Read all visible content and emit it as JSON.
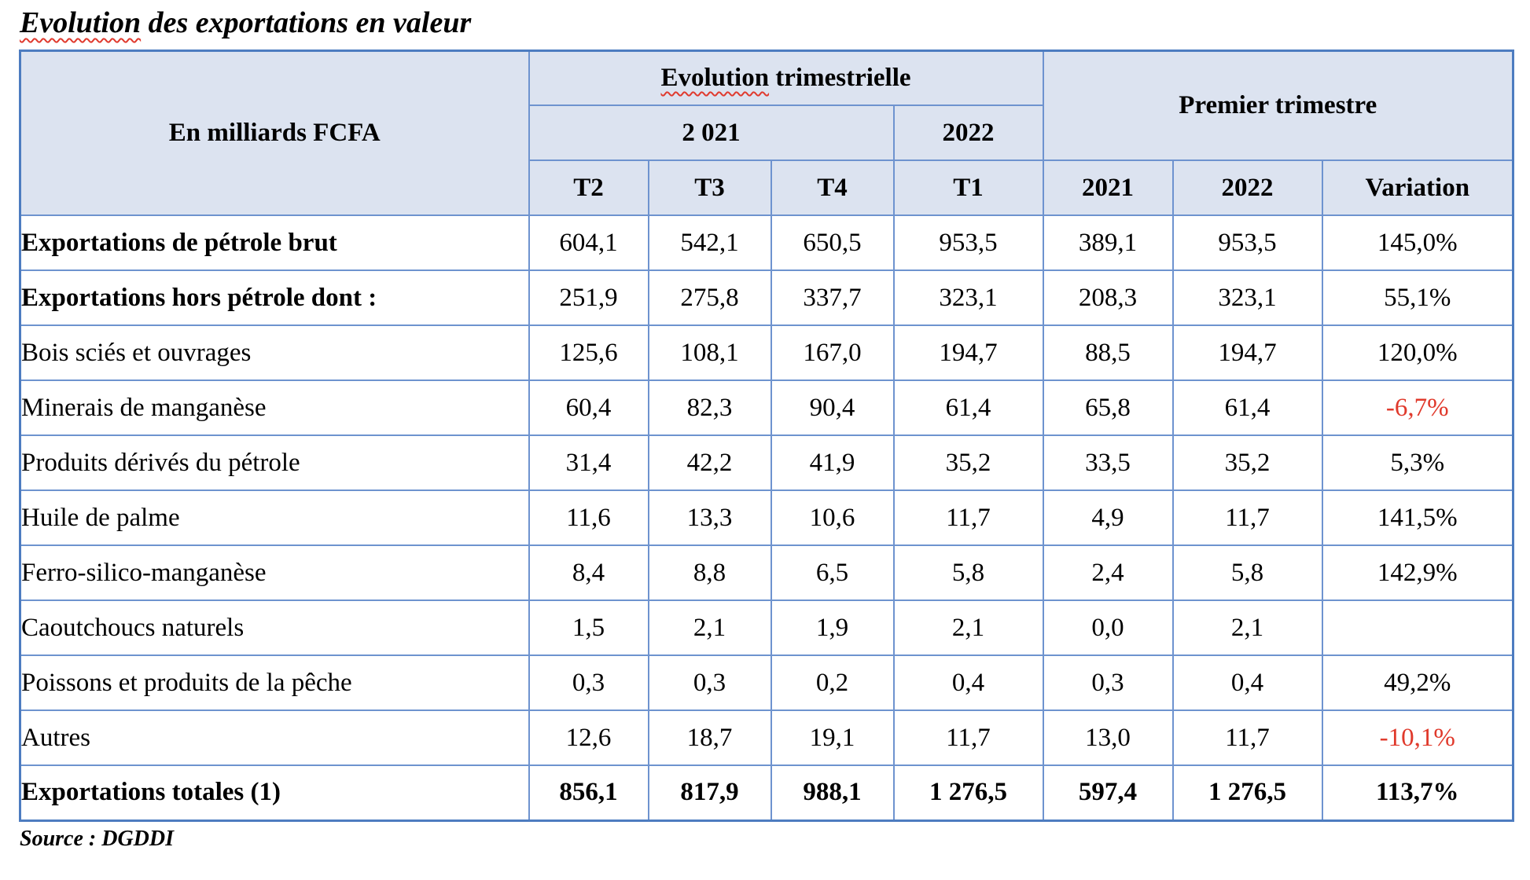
{
  "title": {
    "underlined_word": "Evolution",
    "rest": " des exportations en valeur"
  },
  "source_note": "Source : DGDDI",
  "colors": {
    "table_border_inner": "#6e93cf",
    "table_border_outer": "#4d7cc0",
    "header_fill": "#dce3f0",
    "negative_value": "#e0392b",
    "spellcheck_squiggle": "#e03a2e"
  },
  "table": {
    "corner_header": "En milliards FCFA",
    "evolution_group": {
      "underlined_word": "Evolution",
      "label_rest": " trimestrielle",
      "year_left": "2 021",
      "year_right": "2022",
      "quarter_headers": [
        "T2",
        "T3",
        "T4",
        "T1"
      ]
    },
    "premier_group": {
      "label": "Premier trimestre",
      "col_headers": [
        "2021",
        "2022",
        "Variation"
      ]
    },
    "rows": [
      {
        "label": "Exportations de pétrole brut",
        "label_bold": true,
        "values_bold": false,
        "values": [
          "604,1",
          "542,1",
          "650,5",
          "953,5",
          "389,1",
          "953,5",
          "145,0%"
        ]
      },
      {
        "label": "Exportations hors pétrole dont :",
        "label_bold": true,
        "values_bold": false,
        "values": [
          "251,9",
          "275,8",
          "337,7",
          "323,1",
          "208,3",
          "323,1",
          "55,1%"
        ]
      },
      {
        "label": "Bois sciés et ouvrages",
        "label_bold": false,
        "values_bold": false,
        "values": [
          "125,6",
          "108,1",
          "167,0",
          "194,7",
          "88,5",
          "194,7",
          "120,0%"
        ]
      },
      {
        "label": "Minerais de manganèse",
        "label_bold": false,
        "values_bold": false,
        "values": [
          "60,4",
          "82,3",
          "90,4",
          "61,4",
          "65,8",
          "61,4",
          "-6,7%"
        ]
      },
      {
        "label": "Produits dérivés du pétrole",
        "label_bold": false,
        "values_bold": false,
        "values": [
          "31,4",
          "42,2",
          "41,9",
          "35,2",
          "33,5",
          "35,2",
          "5,3%"
        ]
      },
      {
        "label": "Huile de palme",
        "label_bold": false,
        "values_bold": false,
        "values": [
          "11,6",
          "13,3",
          "10,6",
          "11,7",
          "4,9",
          "11,7",
          "141,5%"
        ]
      },
      {
        "label": "Ferro-silico-manganèse",
        "label_bold": false,
        "values_bold": false,
        "values": [
          "8,4",
          "8,8",
          "6,5",
          "5,8",
          "2,4",
          "5,8",
          "142,9%"
        ]
      },
      {
        "label": "Caoutchoucs naturels",
        "label_bold": false,
        "values_bold": false,
        "values": [
          "1,5",
          "2,1",
          "1,9",
          "2,1",
          "0,0",
          "2,1",
          ""
        ]
      },
      {
        "label": "Poissons et produits de la pêche",
        "label_bold": false,
        "values_bold": false,
        "values": [
          "0,3",
          "0,3",
          "0,2",
          "0,4",
          "0,3",
          "0,4",
          "49,2%"
        ]
      },
      {
        "label": "Autres",
        "label_bold": false,
        "values_bold": false,
        "values": [
          "12,6",
          "18,7",
          "19,1",
          "11,7",
          "13,0",
          "11,7",
          "-10,1%"
        ]
      },
      {
        "label": "Exportations totales (1)",
        "label_bold": true,
        "values_bold": true,
        "values": [
          "856,1",
          "817,9",
          "988,1",
          "1 276,5",
          "597,4",
          "1 276,5",
          "113,7%"
        ]
      }
    ]
  }
}
